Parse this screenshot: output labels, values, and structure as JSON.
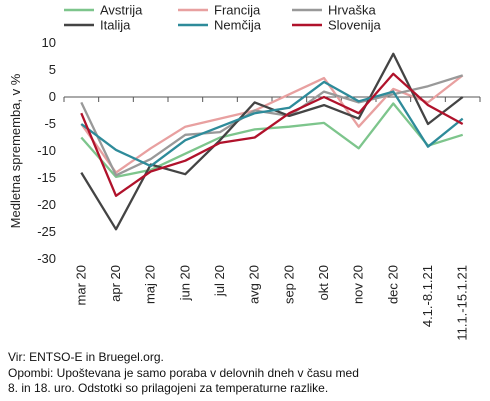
{
  "chart_data": {
    "type": "line",
    "ylabel": "Medletna sprememba, v %",
    "ylim": [
      -30,
      10
    ],
    "yticks": [
      10,
      5,
      0,
      -5,
      -10,
      -15,
      -20,
      -25,
      -30
    ],
    "grid": false,
    "legend_position": "top",
    "categories": [
      "mar 20",
      "apr 20",
      "maj 20",
      "jun 20",
      "jul 20",
      "avg 20",
      "sep 20",
      "okt 20",
      "nov 20",
      "dec 20",
      "4.1.-8.1.21",
      "11.1.-15.1.21"
    ],
    "series": [
      {
        "name": "Avstrija",
        "color": "#7dc58c",
        "values": [
          -7.5,
          -14.8,
          -13.5,
          -10.5,
          -7.5,
          -6.0,
          -5.5,
          -4.8,
          -9.5,
          -1.2,
          -9.0,
          -7.0
        ]
      },
      {
        "name": "Francija",
        "color": "#e8a0a0",
        "values": [
          -5.0,
          -14.0,
          -9.5,
          -5.5,
          -4.0,
          -2.5,
          0.5,
          3.5,
          -5.5,
          1.5,
          -1.0,
          4.0
        ]
      },
      {
        "name": "Hrvaška",
        "color": "#999999",
        "values": [
          -1.0,
          -14.5,
          -11.5,
          -7.0,
          -6.5,
          -2.5,
          -3.5,
          1.0,
          -1.0,
          0.5,
          2.0,
          4.0
        ]
      },
      {
        "name": "Italija",
        "color": "#444444",
        "values": [
          -14.0,
          -24.5,
          -12.5,
          -14.3,
          -8.0,
          -1.0,
          -3.5,
          -1.5,
          -4.0,
          8.0,
          -5.0,
          0.0
        ]
      },
      {
        "name": "Nemčija",
        "color": "#2e8b9a",
        "values": [
          -5.0,
          -9.8,
          -12.8,
          -8.0,
          -5.5,
          -3.0,
          -2.0,
          2.8,
          -0.8,
          1.0,
          -9.2,
          -4.0
        ]
      },
      {
        "name": "Slovenija",
        "color": "#b0122b",
        "values": [
          -3.0,
          -18.3,
          -13.8,
          -11.8,
          -8.5,
          -7.5,
          -3.0,
          0.0,
          -3.0,
          4.3,
          -1.5,
          -5.0
        ]
      }
    ]
  },
  "footnote": {
    "line1": "Vir: ENTSO-E in Bruegel.org.",
    "line2": "Opombi: Upoštevana je samo poraba v delovnih dneh v času med",
    "line3": "8. in 18. uro. Odstotki so prilagojeni za temperaturne razlike."
  }
}
